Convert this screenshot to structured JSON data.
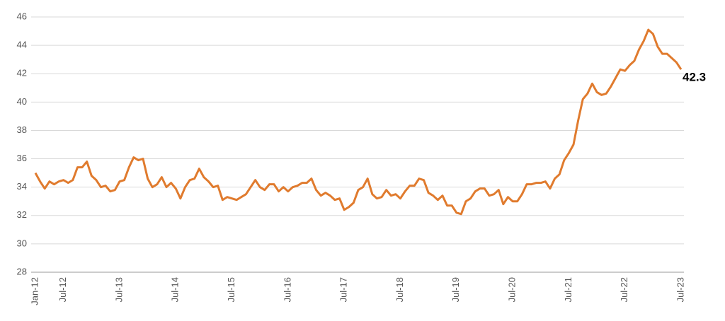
{
  "chart_data": {
    "type": "line",
    "categories": [
      "Jan-12",
      null,
      null,
      null,
      null,
      null,
      "Jul-12",
      null,
      null,
      null,
      null,
      null,
      null,
      null,
      null,
      null,
      null,
      null,
      "Jul-13",
      null,
      null,
      null,
      null,
      null,
      null,
      null,
      null,
      null,
      null,
      null,
      "Jul-14",
      null,
      null,
      null,
      null,
      null,
      null,
      null,
      null,
      null,
      null,
      null,
      "Jul-15",
      null,
      null,
      null,
      null,
      null,
      null,
      null,
      null,
      null,
      null,
      null,
      "Jul-16",
      null,
      null,
      null,
      null,
      null,
      null,
      null,
      null,
      null,
      null,
      null,
      "Jul-17",
      null,
      null,
      null,
      null,
      null,
      null,
      null,
      null,
      null,
      null,
      null,
      "Jul-18",
      null,
      null,
      null,
      null,
      null,
      null,
      null,
      null,
      null,
      null,
      null,
      "Jul-19",
      null,
      null,
      null,
      null,
      null,
      null,
      null,
      null,
      null,
      null,
      null,
      "Jul-20",
      null,
      null,
      null,
      null,
      null,
      null,
      null,
      null,
      null,
      null,
      null,
      "Jul-21",
      null,
      null,
      null,
      null,
      null,
      null,
      null,
      null,
      null,
      null,
      null,
      "Jul-22",
      null,
      null,
      null,
      null,
      null,
      null,
      null,
      null,
      null,
      null,
      null,
      "Jul-23"
    ],
    "values": [
      35.0,
      34.4,
      33.9,
      34.4,
      34.2,
      34.4,
      34.5,
      34.3,
      34.5,
      35.4,
      35.4,
      35.8,
      34.8,
      34.5,
      34.0,
      34.1,
      33.7,
      33.8,
      34.4,
      34.5,
      35.4,
      36.1,
      35.9,
      36.0,
      34.6,
      34.0,
      34.2,
      34.7,
      34.0,
      34.3,
      33.9,
      33.2,
      34.0,
      34.5,
      34.6,
      35.3,
      34.7,
      34.4,
      34.0,
      34.1,
      33.1,
      33.3,
      33.2,
      33.1,
      33.3,
      33.5,
      34.0,
      34.5,
      34.0,
      33.8,
      34.2,
      34.2,
      33.7,
      34.0,
      33.7,
      34.0,
      34.1,
      34.3,
      34.3,
      34.6,
      33.8,
      33.4,
      33.6,
      33.4,
      33.1,
      33.2,
      32.4,
      32.6,
      32.9,
      33.8,
      34.0,
      34.6,
      33.5,
      33.2,
      33.3,
      33.8,
      33.4,
      33.5,
      33.2,
      33.7,
      34.1,
      34.1,
      34.6,
      34.5,
      33.6,
      33.4,
      33.1,
      33.4,
      32.7,
      32.7,
      32.2,
      32.1,
      33.0,
      33.2,
      33.7,
      33.9,
      33.9,
      33.4,
      33.5,
      33.8,
      32.8,
      33.3,
      33.0,
      33.0,
      33.5,
      34.2,
      34.2,
      34.3,
      34.3,
      34.4,
      33.9,
      34.6,
      34.9,
      35.9,
      36.4,
      37.0,
      38.7,
      40.2,
      40.6,
      41.3,
      40.7,
      40.5,
      40.6,
      41.1,
      41.7,
      42.3,
      42.2,
      42.6,
      42.9,
      43.7,
      44.3,
      45.1,
      44.8,
      43.9,
      43.4,
      43.4,
      43.1,
      42.8,
      42.3
    ],
    "end_label": "42.3",
    "color": "#e07b2e",
    "ylim": [
      28,
      46
    ],
    "yticks": [
      28,
      30,
      32,
      34,
      36,
      38,
      40,
      42,
      44,
      46
    ],
    "grid": true
  }
}
